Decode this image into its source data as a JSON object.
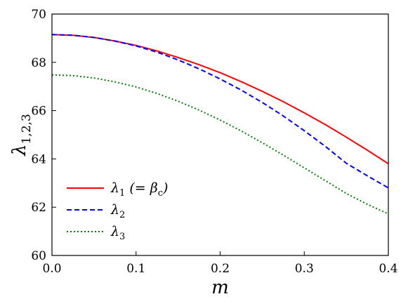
{
  "chart_data": {
    "type": "line",
    "xlabel": "m",
    "ylabel": "λ",
    "ylabel_sub": "1,2,3",
    "xlim": [
      0.0,
      0.4
    ],
    "ylim": [
      60,
      70
    ],
    "xticks": [
      "0.0",
      "0.1",
      "0.2",
      "0.3",
      "0.4"
    ],
    "yticks": [
      "60",
      "62",
      "64",
      "66",
      "68",
      "70"
    ],
    "grid": false,
    "legend_position": "lower-left",
    "x": [
      0.0,
      0.025,
      0.05,
      0.075,
      0.1,
      0.125,
      0.15,
      0.175,
      0.2,
      0.225,
      0.25,
      0.275,
      0.3,
      0.325,
      0.35,
      0.375,
      0.4
    ],
    "series": [
      {
        "name": "λ1 (= βc)",
        "legend_main": "λ",
        "legend_sub": "1",
        "legend_tail": " (= β",
        "legend_tail_sub": "c",
        "legend_close": ")",
        "color": "#ff0000",
        "style": "solid",
        "values": [
          69.15,
          69.12,
          69.03,
          68.88,
          68.7,
          68.47,
          68.2,
          67.9,
          67.57,
          67.2,
          66.8,
          66.37,
          65.91,
          65.42,
          64.9,
          64.36,
          63.8
        ]
      },
      {
        "name": "λ2",
        "legend_main": "λ",
        "legend_sub": "2",
        "color": "#0000ff",
        "style": "dashed",
        "values": [
          69.15,
          69.12,
          69.03,
          68.88,
          68.68,
          68.42,
          68.1,
          67.73,
          67.31,
          66.85,
          66.34,
          65.78,
          65.17,
          64.52,
          63.82,
          63.3,
          62.8
        ]
      },
      {
        "name": "λ3",
        "legend_main": "λ",
        "legend_sub": "3",
        "color": "#008000",
        "style": "dotted",
        "values": [
          67.48,
          67.45,
          67.35,
          67.19,
          66.98,
          66.71,
          66.39,
          66.02,
          65.61,
          65.16,
          64.67,
          64.16,
          63.63,
          63.1,
          62.57,
          62.12,
          61.72
        ]
      }
    ]
  }
}
